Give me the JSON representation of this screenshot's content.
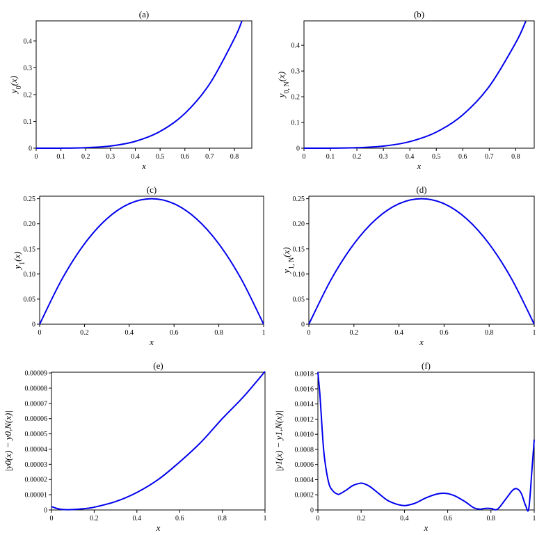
{
  "colors": {
    "curve": "#0000ee",
    "axes": "#000000",
    "background": "#ffffff"
  },
  "chart_data": [
    {
      "type": "line",
      "title": "(a)",
      "xlabel": "x",
      "ylabel": "y",
      "ylabel_sub": "0",
      "ylabel_arg": "(x)",
      "xlim": [
        0,
        0.87
      ],
      "ylim": [
        0,
        0.475
      ],
      "xticks": [
        0,
        0.1,
        0.2,
        0.3,
        0.4,
        0.5,
        0.6,
        0.7,
        0.8
      ],
      "xtick_labels": [
        "0",
        "0.1",
        "0.2",
        "0.3",
        "0.4",
        "0.5",
        "0.6",
        "0.7",
        "0.8"
      ],
      "yticks": [
        0,
        0.1,
        0.2,
        0.3,
        0.4
      ],
      "ytick_labels": [
        "0",
        "0.1",
        "0.2",
        "0.3",
        "0.4"
      ],
      "grid": false,
      "series": [
        {
          "x": [
            0,
            0.1,
            0.2,
            0.3,
            0.4,
            0.5,
            0.6,
            0.7,
            0.8,
            0.83
          ],
          "y": [
            0,
            0.0001,
            0.002,
            0.0081,
            0.0256,
            0.0625,
            0.1296,
            0.2401,
            0.4096,
            0.4746
          ]
        }
      ]
    },
    {
      "type": "line",
      "title": "(b)",
      "xlabel": "x",
      "ylabel": "y",
      "ylabel_sub": "0, N",
      "ylabel_arg": "(x)",
      "xlim": [
        0,
        0.87
      ],
      "ylim": [
        0,
        0.495
      ],
      "xticks": [
        0,
        0.1,
        0.2,
        0.3,
        0.4,
        0.5,
        0.6,
        0.7,
        0.8
      ],
      "xtick_labels": [
        "0",
        "0.1",
        "0.2",
        "0.3",
        "0.4",
        "0.5",
        "0.6",
        "0.7",
        "0.8"
      ],
      "yticks": [
        0,
        0.1,
        0.2,
        0.3,
        0.4
      ],
      "ytick_labels": [
        "0",
        "0.1",
        "0.2",
        "0.3",
        "0.4"
      ],
      "grid": false,
      "series": [
        {
          "x": [
            0,
            0.1,
            0.2,
            0.3,
            0.4,
            0.5,
            0.6,
            0.7,
            0.8,
            0.838
          ],
          "y": [
            0,
            0.0001,
            0.002,
            0.0081,
            0.0256,
            0.0625,
            0.1296,
            0.2401,
            0.4096,
            0.4931
          ]
        }
      ]
    },
    {
      "type": "line",
      "title": "(c)",
      "xlabel": "x",
      "ylabel": "y",
      "ylabel_sub": "1",
      "ylabel_arg": "(x)",
      "xlim": [
        0,
        1
      ],
      "ylim": [
        0,
        0.255
      ],
      "xticks": [
        0,
        0.2,
        0.4,
        0.6,
        0.8,
        1
      ],
      "xtick_labels": [
        "0",
        "0.2",
        "0.4",
        "0.6",
        "0.8",
        "1"
      ],
      "yticks": [
        0,
        0.05,
        0.1,
        0.15,
        0.2,
        0.25
      ],
      "ytick_labels": [
        "0",
        "0.05",
        "0.10",
        "0.15",
        "0.20",
        "0.25"
      ],
      "grid": false,
      "series": [
        {
          "x": [
            0,
            0.1,
            0.2,
            0.3,
            0.4,
            0.5,
            0.6,
            0.7,
            0.8,
            0.9,
            1
          ],
          "y": [
            0,
            0.09,
            0.16,
            0.21,
            0.24,
            0.25,
            0.24,
            0.21,
            0.16,
            0.09,
            0
          ]
        }
      ]
    },
    {
      "type": "line",
      "title": "(d)",
      "xlabel": "x",
      "ylabel": "y",
      "ylabel_sub": "1, N",
      "ylabel_arg": "(x)",
      "xlim": [
        0,
        1
      ],
      "ylim": [
        0,
        0.255
      ],
      "xticks": [
        0,
        0.2,
        0.4,
        0.6,
        0.8,
        1
      ],
      "xtick_labels": [
        "0",
        "0.2",
        "0.4",
        "0.6",
        "0.8",
        "1"
      ],
      "yticks": [
        0,
        0.05,
        0.1,
        0.15,
        0.2,
        0.25
      ],
      "ytick_labels": [
        "0",
        "0.05",
        "0.10",
        "0.15",
        "0.20",
        "0.25"
      ],
      "grid": false,
      "series": [
        {
          "x": [
            0,
            0.1,
            0.2,
            0.3,
            0.4,
            0.5,
            0.6,
            0.7,
            0.8,
            0.9,
            1
          ],
          "y": [
            0,
            0.09,
            0.16,
            0.21,
            0.24,
            0.25,
            0.24,
            0.21,
            0.16,
            0.09,
            0
          ]
        }
      ]
    },
    {
      "type": "line",
      "title": "(e)",
      "xlabel": "x",
      "ylabel": "|y0(x) − y0,N(x)|",
      "xlim": [
        0,
        1
      ],
      "ylim": [
        0,
        9.05e-05
      ],
      "xticks": [
        0,
        0.2,
        0.4,
        0.6,
        0.8,
        1
      ],
      "xtick_labels": [
        "0",
        "0.2",
        "0.4",
        "0.6",
        "0.8",
        "1"
      ],
      "yticks": [
        0,
        1e-05,
        2e-05,
        3e-05,
        4e-05,
        5e-05,
        6e-05,
        7e-05,
        8e-05,
        9e-05
      ],
      "ytick_labels": [
        "0",
        "0.00001",
        "0.00002",
        "0.00003",
        "0.00004",
        "0.00005",
        "0.00006",
        "0.00007",
        "0.00008",
        "0.00009"
      ],
      "grid": false,
      "series": [
        {
          "x": [
            0,
            0.03,
            0.06,
            0.1,
            0.15,
            0.2,
            0.3,
            0.4,
            0.5,
            0.6,
            0.7,
            0.8,
            0.9,
            1
          ],
          "y": [
            2.2e-06,
            8e-07,
            2e-07,
            3e-07,
            8e-07,
            1.8e-06,
            5.5e-06,
            1.15e-05,
            2e-05,
            3.15e-05,
            4.45e-05,
            6e-05,
            7.45e-05,
            9.1e-05
          ]
        }
      ]
    },
    {
      "type": "line",
      "title": "(f)",
      "xlabel": "x",
      "ylabel": "|y1(x) − y1,N(x)|",
      "xlim": [
        0,
        1
      ],
      "ylim": [
        0,
        0.00182
      ],
      "xticks": [
        0,
        0.2,
        0.4,
        0.6,
        0.8,
        1
      ],
      "xtick_labels": [
        "0",
        "0.2",
        "0.4",
        "0.6",
        "0.8",
        "1"
      ],
      "yticks": [
        0,
        0.0002,
        0.0004,
        0.0006,
        0.0008,
        0.001,
        0.0012,
        0.0014,
        0.0016,
        0.0018
      ],
      "ytick_labels": [
        "0",
        "0.0002",
        "0.0004",
        "0.0006",
        "0.0008",
        "0.0010",
        "0.0012",
        "0.0014",
        "0.0016",
        "0.0018"
      ],
      "grid": false,
      "series": [
        {
          "x": [
            0,
            0.01,
            0.02,
            0.03,
            0.05,
            0.07,
            0.09,
            0.1,
            0.13,
            0.16,
            0.19,
            0.21,
            0.24,
            0.28,
            0.32,
            0.36,
            0.39,
            0.41,
            0.45,
            0.5,
            0.55,
            0.59,
            0.63,
            0.68,
            0.72,
            0.75,
            0.77,
            0.8,
            0.83,
            0.87,
            0.9,
            0.92,
            0.94,
            0.96,
            0.975,
            0.99,
            1
          ],
          "y": [
            0.00182,
            0.0015,
            0.00105,
            0.0007,
            0.00036,
            0.00025,
            0.00021,
            0.00021,
            0.00026,
            0.00032,
            0.00035,
            0.00035,
            0.00031,
            0.00022,
            0.00013,
            8e-05,
            6e-05,
            6e-05,
            9e-05,
            0.00016,
            0.00021,
            0.00022,
            0.00019,
            0.00011,
            3e-05,
            1e-05,
            2e-05,
            2e-05,
            1e-05,
            0.00015,
            0.00026,
            0.00028,
            0.00022,
            6e-05,
            2e-05,
            0.00055,
            0.00093
          ]
        }
      ]
    }
  ]
}
